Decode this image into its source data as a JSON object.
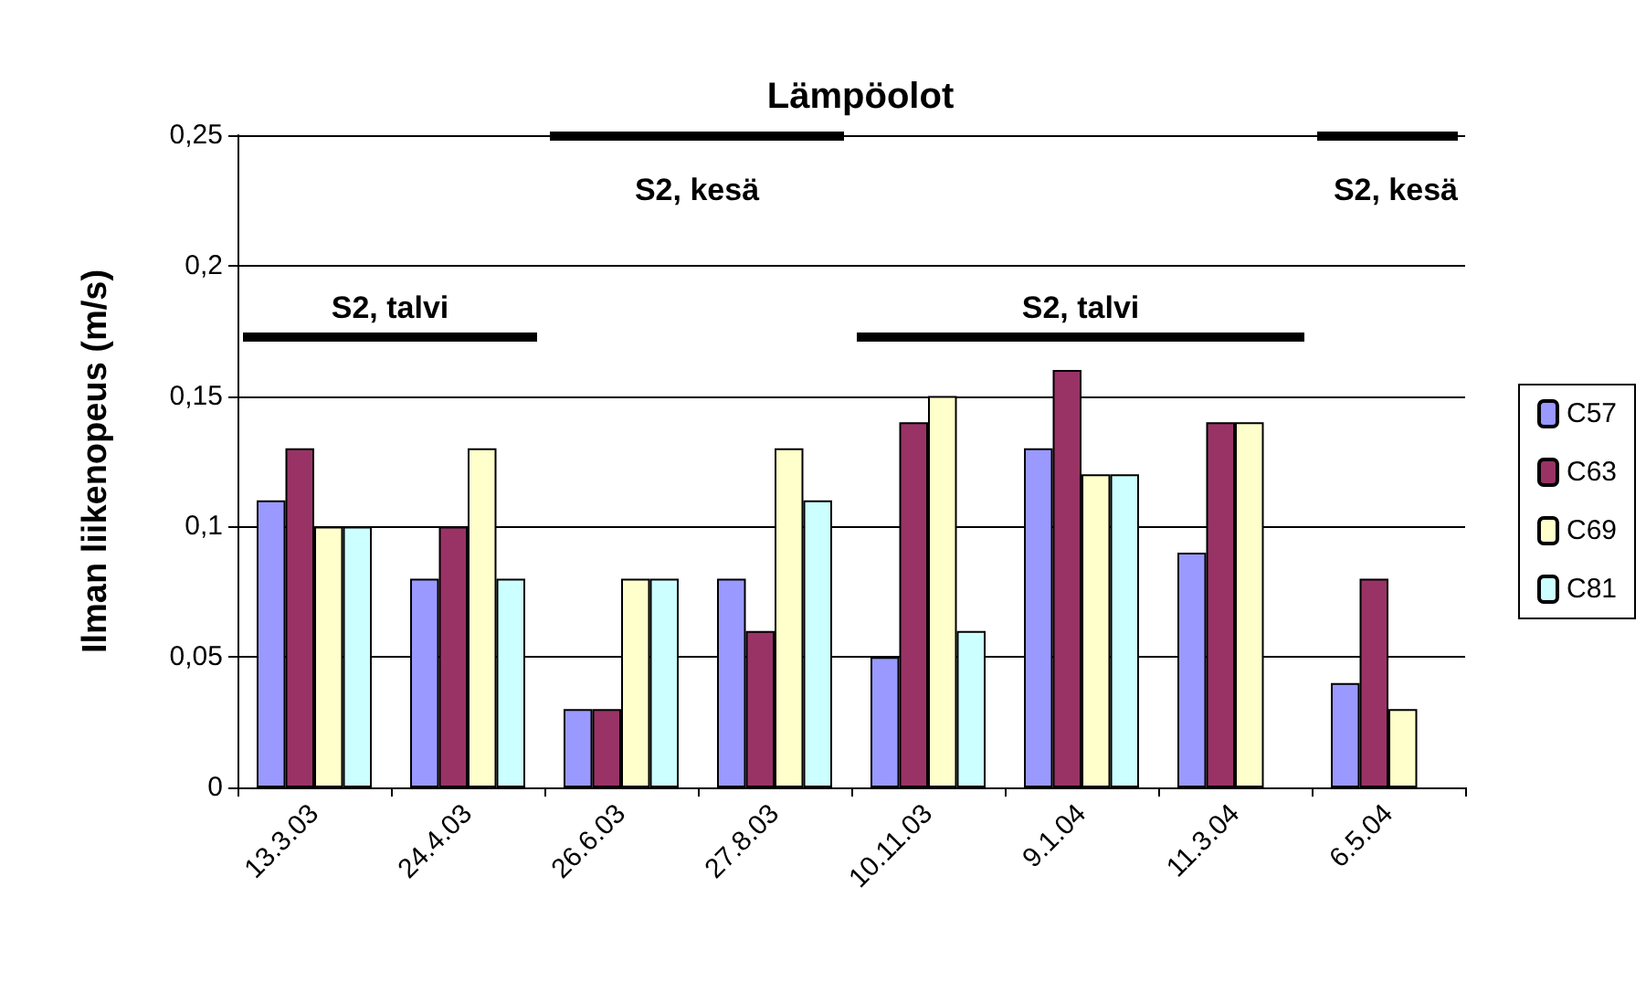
{
  "chart_data": {
    "type": "bar",
    "title": "Lämpöolot",
    "ylabel": "Ilman liikenopeus (m/s)",
    "categories": [
      "13.3.03",
      "24.4.03",
      "26.6.03",
      "27.8.03",
      "10.11.03",
      "9.1.04",
      "11.3.04",
      "6.5.04"
    ],
    "series": [
      {
        "name": "C57",
        "color": "#9999ff",
        "values": [
          0.11,
          0.08,
          0.03,
          0.08,
          0.05,
          0.13,
          0.09,
          0.04
        ]
      },
      {
        "name": "C63",
        "color": "#993366",
        "values": [
          0.13,
          0.1,
          0.03,
          0.06,
          0.14,
          0.16,
          0.14,
          0.08
        ]
      },
      {
        "name": "C69",
        "color": "#ffffcc",
        "values": [
          0.1,
          0.13,
          0.08,
          0.13,
          0.15,
          0.12,
          0.14,
          0.03
        ]
      },
      {
        "name": "C81",
        "color": "#ccffff",
        "values": [
          0.1,
          0.08,
          0.08,
          0.11,
          0.06,
          0.12,
          null,
          null
        ]
      }
    ],
    "ylim": [
      0,
      0.25
    ],
    "yticks": [
      0,
      {
        "value": 0.05,
        "label": "0,05"
      },
      {
        "value": 0.1,
        "label": "0,1"
      },
      {
        "value": 0.15,
        "label": "0,15"
      },
      {
        "value": 0.2,
        "label": "0,2"
      },
      {
        "value": 0.25,
        "label": "0,25"
      }
    ],
    "annotations": [
      "S2, talvi",
      "S2, kesä",
      "S2, talvi",
      "S2, kesä"
    ],
    "grid": "y",
    "legend": "right"
  }
}
